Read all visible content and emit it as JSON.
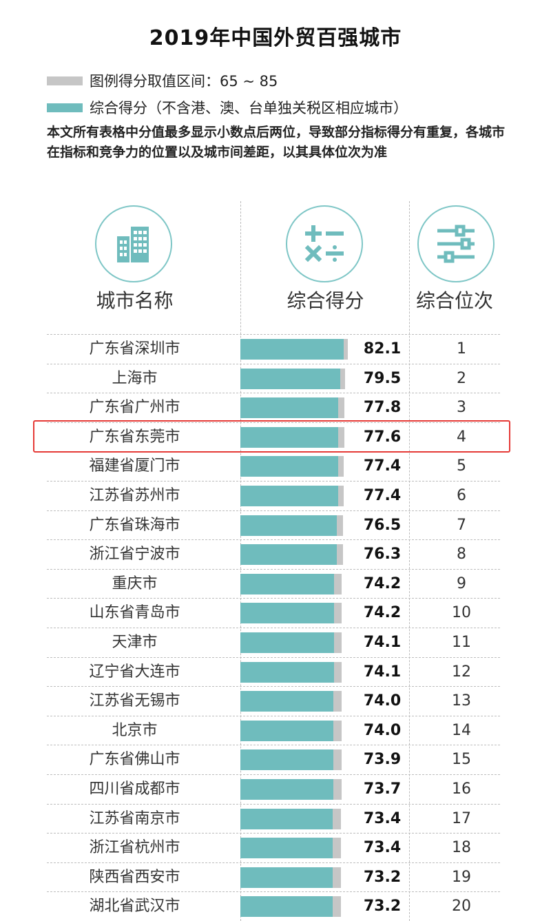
{
  "title": "2019年中国外贸百强城市",
  "colors": {
    "bar_fill": "#6fbcbd",
    "bar_range": "#c6c6c6",
    "highlight": "#e53935"
  },
  "legend": {
    "range_label": "图例得分取值区间：65 ~ 85",
    "score_label": "综合得分（不含港、澳、台单独关税区相应城市）"
  },
  "note": "本文所有表格中分值最多显示小数点后两位，导致部分指标得分有重复，各城市在指标和竞争力的位置以及城市间差距，以其具体位次为准",
  "headers": {
    "city": {
      "label": "城市名称",
      "icon": "buildings-icon"
    },
    "score": {
      "label": "综合得分",
      "icon": "math-operators-icon"
    },
    "rank": {
      "label": "综合位次",
      "icon": "sliders-icon"
    }
  },
  "highlighted_city": "广东省东莞市",
  "chart_data": {
    "type": "bar",
    "orientation": "horizontal",
    "title": "2019年中国外贸百强城市",
    "range_min": 65,
    "range_max": 85,
    "categories": [
      "广东省深圳市",
      "上海市",
      "广东省广州市",
      "广东省东莞市",
      "福建省厦门市",
      "江苏省苏州市",
      "广东省珠海市",
      "浙江省宁波市",
      "重庆市",
      "山东省青岛市",
      "天津市",
      "辽宁省大连市",
      "江苏省无锡市",
      "北京市",
      "广东省佛山市",
      "四川省成都市",
      "江苏省南京市",
      "浙江省杭州市",
      "陕西省西安市",
      "湖北省武汉市"
    ],
    "values": [
      82.1,
      79.5,
      77.8,
      77.6,
      77.4,
      77.4,
      76.5,
      76.3,
      74.2,
      74.2,
      74.1,
      74.1,
      74.0,
      74.0,
      73.9,
      73.7,
      73.4,
      73.4,
      73.2,
      73.2
    ],
    "value_labels": [
      "82.1",
      "79.5",
      "77.8",
      "77.6",
      "77.4",
      "77.4",
      "76.5",
      "76.3",
      "74.2",
      "74.2",
      "74.1",
      "74.1",
      "74.0",
      "74.0",
      "73.9",
      "73.7",
      "73.4",
      "73.4",
      "73.2",
      "73.2"
    ],
    "ranks": [
      "1",
      "2",
      "3",
      "4",
      "5",
      "6",
      "7",
      "8",
      "9",
      "10",
      "11",
      "12",
      "13",
      "14",
      "15",
      "16",
      "17",
      "18",
      "19",
      "20"
    ]
  }
}
